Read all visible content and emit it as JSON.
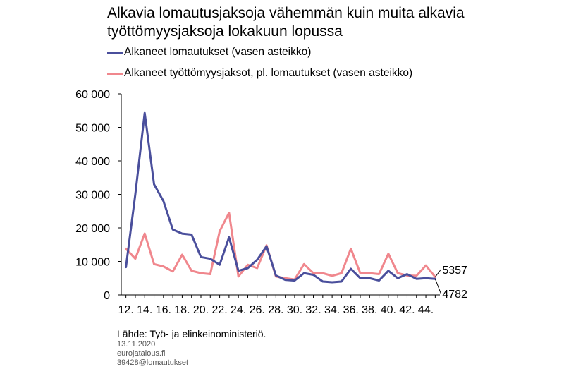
{
  "chart_data": {
    "type": "line",
    "title": "Alkavia lomautusjaksoja vähemmän kuin muita alkavia työttömyysjaksoja lokakuun lopussa",
    "x": [
      12,
      13,
      14,
      15,
      16,
      17,
      18,
      19,
      20,
      21,
      22,
      23,
      24,
      25,
      26,
      27,
      28,
      29,
      30,
      31,
      32,
      33,
      34,
      35,
      36,
      37,
      38,
      39,
      40,
      41,
      42,
      43,
      44,
      45
    ],
    "x_tick_labels": [
      "12.",
      "14.",
      "16.",
      "18.",
      "20.",
      "22.",
      "24.",
      "26.",
      "28.",
      "30.",
      "32.",
      "34.",
      "36.",
      "38.",
      "40.",
      "42.",
      "44."
    ],
    "x_tick_values": [
      12,
      14,
      16,
      18,
      20,
      22,
      24,
      26,
      28,
      30,
      32,
      34,
      36,
      38,
      40,
      42,
      44
    ],
    "y_tick_labels": [
      "60 000",
      "50 000",
      "40 000",
      "30 000",
      "20 000",
      "10 000",
      "0"
    ],
    "y_tick_values": [
      60000,
      50000,
      40000,
      30000,
      20000,
      10000,
      0
    ],
    "ylim": [
      0,
      60000
    ],
    "xlim": [
      11.5,
      45.5
    ],
    "grid": false,
    "legend_position": "top-left",
    "series": [
      {
        "name": "Alkaneet lomautukset (vasen asteikko)",
        "color": "#4a4f9c",
        "values": [
          8300,
          30000,
          54300,
          33000,
          28000,
          19500,
          18300,
          18000,
          11300,
          10800,
          9000,
          17200,
          7200,
          8000,
          10500,
          14500,
          5800,
          4500,
          4300,
          6500,
          6000,
          4000,
          3800,
          4000,
          7800,
          5000,
          5000,
          4300,
          7200,
          5000,
          6200,
          4800,
          5000,
          4782
        ]
      },
      {
        "name": "Alkaneet työttömyysjaksot, pl. lomautukset (vasen asteikko)",
        "color": "#f0878d",
        "values": [
          13800,
          10800,
          18300,
          9200,
          8500,
          7000,
          12000,
          7200,
          6500,
          6200,
          19000,
          24500,
          5500,
          9000,
          8000,
          14800,
          5500,
          5000,
          4600,
          9200,
          6500,
          6500,
          5700,
          6500,
          13800,
          6500,
          6500,
          6200,
          12300,
          6500,
          5800,
          5700,
          8800,
          5357
        ]
      }
    ],
    "end_labels": [
      "5357",
      "4782"
    ]
  },
  "footer": {
    "source": "Lähde: Työ- ja elinkeinoministeriö.",
    "date": "13.11.2020",
    "site": "eurojatalous.fi",
    "code": "39428@lomautukset"
  }
}
